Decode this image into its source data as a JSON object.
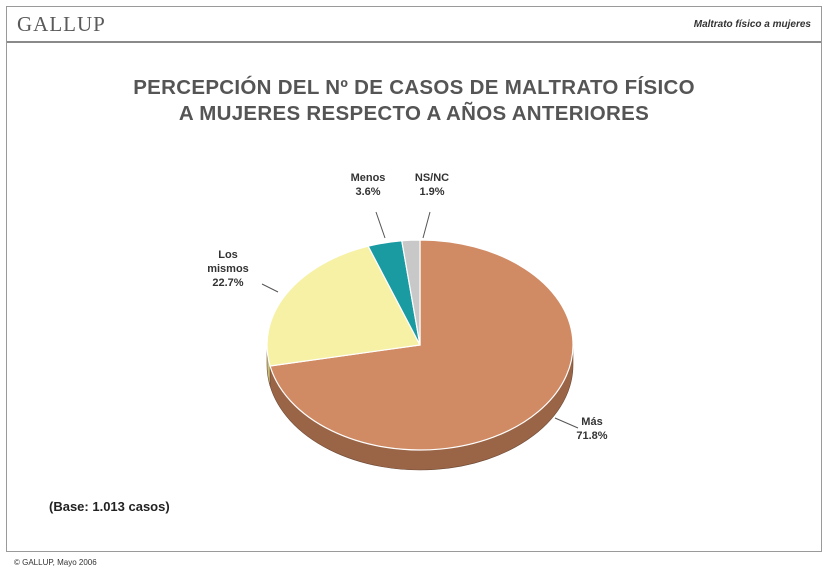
{
  "header": {
    "brand": "GALLUP",
    "topic": "Maltrato físico a mujeres"
  },
  "title_lines": [
    "PERCEPCIÓN DEL Nº DE CASOS DE MALTRATO FÍSICO",
    "A MUJERES RESPECTO A AÑOS ANTERIORES"
  ],
  "base_note": "(Base: 1.013 casos)",
  "footer": "© GALLUP, Mayo 2006",
  "chart_data": {
    "type": "pie",
    "unit": "%",
    "slices": [
      {
        "label": "Más",
        "value": 71.8,
        "value_label": "71.8%",
        "color": "#d08a64",
        "side": "#9a6446"
      },
      {
        "label": "Los mismos",
        "value": 22.7,
        "value_label": "22.7%",
        "color": "#f7f1a6",
        "side": "#c8c07a"
      },
      {
        "label": "Menos",
        "value": 3.6,
        "value_label": "3.6%",
        "color": "#1a9ba2",
        "side": "#137377"
      },
      {
        "label": "NS/NC",
        "value": 1.9,
        "value_label": "1.9%",
        "color": "#c8c8c8",
        "side": "#9a9a9a"
      }
    ]
  }
}
